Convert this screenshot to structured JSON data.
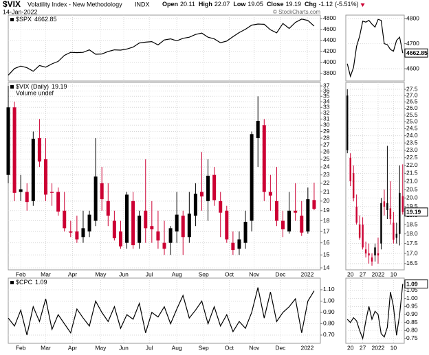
{
  "header": {
    "symbol": "$VIX",
    "name": "Volatility Index - New Methodology",
    "exchange": "INDX",
    "date": "14-Jan-2022",
    "quote": [
      {
        "label": "Open",
        "value": 20.11
      },
      {
        "label": "High",
        "value": 22.07
      },
      {
        "label": "Low",
        "value": 19.05
      },
      {
        "label": "Close",
        "value": 19.19
      }
    ],
    "chg_label": "Chg",
    "chg": -1.12,
    "chg_pct": "(-5.51%)",
    "source": "© StockCharts.com"
  },
  "chart_data": [
    {
      "type": "line",
      "series": [
        {
          "name": "$SPX",
          "color": "#000000",
          "values": [
            3770,
            3890,
            3935,
            3905,
            3840,
            3945,
            3915,
            3975,
            4020,
            4130,
            4185,
            4180,
            4185,
            4230,
            4150,
            4155,
            4200,
            4230,
            4225,
            4245,
            4280,
            4355,
            4370,
            4380,
            4320,
            4410,
            4430,
            4395,
            4440,
            4460,
            4510,
            4535,
            4460,
            4430,
            4360,
            4390,
            4470,
            4545,
            4605,
            4680,
            4700,
            4695,
            4595,
            4540,
            4710,
            4620,
            4730,
            4790,
            4765,
            4662.85
          ]
        }
      ],
      "xlim": [
        0,
        50
      ],
      "ylim": [
        3662,
        4862
      ],
      "yticks": [
        3800,
        4000,
        4200,
        4400,
        4600,
        4800
      ],
      "grid": true
    },
    {
      "type": "line",
      "series": [
        {
          "color": "#000000",
          "values": [
            4620,
            4570,
            4605,
            4690,
            4730,
            4790,
            4786,
            4793,
            4778,
            4766,
            4797,
            4793,
            4700,
            4696,
            4677,
            4670,
            4713,
            4726,
            4662.85
          ]
        }
      ],
      "xlim": [
        -0.5,
        18.5
      ],
      "ylim": [
        4551,
        4814
      ],
      "yticks": [
        4600,
        4700,
        4800
      ],
      "grid": true
    },
    {
      "type": "candlestick",
      "series": [
        {
          "name": "$VIX (Daily)",
          "open": [
            23,
            33,
            21,
            21,
            20,
            28,
            25,
            21,
            21,
            19,
            17,
            17,
            16.5,
            17,
            18,
            22,
            20,
            18,
            17,
            16,
            20,
            16,
            19,
            17.5,
            17,
            16,
            16,
            17,
            18.5,
            16.5,
            18.5,
            21,
            20,
            23,
            20,
            19,
            16,
            15.5,
            16,
            18,
            28,
            30,
            21,
            20,
            18,
            17,
            19,
            18.5,
            17,
            20.11
          ],
          "high": [
            37,
            34,
            23,
            22,
            29,
            31,
            28,
            22,
            21.5,
            21,
            18,
            18.5,
            19,
            19,
            28,
            24,
            22,
            19,
            18,
            21,
            21,
            19,
            25,
            20,
            19,
            18,
            17.5,
            21,
            19,
            21,
            22,
            26,
            25,
            24,
            21,
            19.5,
            17,
            17,
            19,
            29,
            35,
            31,
            23,
            24,
            19,
            21,
            22,
            20,
            21.5,
            22.07
          ],
          "low": [
            22,
            20,
            20,
            19,
            19.5,
            24,
            20,
            19.5,
            18.5,
            17,
            16.5,
            16,
            16,
            16.5,
            17.5,
            19,
            17.5,
            16.2,
            15.5,
            15.5,
            15.5,
            15.5,
            16,
            16,
            15.5,
            15,
            15,
            16,
            15,
            16,
            17.5,
            19,
            18,
            19.5,
            16.5,
            16,
            15,
            15,
            15.5,
            17,
            24,
            20,
            19,
            17.5,
            16.5,
            16.8,
            18,
            16.6,
            16.8,
            19.05
          ],
          "close": [
            33,
            20.9,
            21.3,
            19.9,
            27.9,
            24.7,
            20.7,
            20.9,
            18.9,
            17.3,
            16.9,
            16.3,
            17.3,
            18.6,
            22.8,
            20.2,
            18.5,
            16.4,
            15.7,
            20.7,
            15.8,
            18.5,
            17.3,
            17.2,
            16.2,
            15.5,
            17.3,
            18.6,
            16.5,
            18.7,
            20.8,
            20.5,
            22.9,
            20.1,
            18.8,
            16.3,
            15.4,
            16.3,
            17.9,
            28.6,
            30.7,
            21,
            20.6,
            18,
            17.2,
            19,
            18.8,
            16.9,
            20.2,
            19.19
          ]
        }
      ],
      "up_color": "#000000",
      "down_color": "#cc0033",
      "annotation": "Volume undef",
      "log_scale": true,
      "xlim": [
        0,
        50
      ],
      "xticks": [
        {
          "value": 2,
          "label": "Feb"
        },
        {
          "value": 6,
          "label": "Mar"
        },
        {
          "value": 10.3,
          "label": "Apr"
        },
        {
          "value": 14.8,
          "label": "May"
        },
        {
          "value": 18.5,
          "label": "Jun"
        },
        {
          "value": 22.6,
          "label": "Jul"
        },
        {
          "value": 27,
          "label": "Aug"
        },
        {
          "value": 31.3,
          "label": "Sep"
        },
        {
          "value": 35.4,
          "label": "Oct"
        },
        {
          "value": 39.4,
          "label": "Nov"
        },
        {
          "value": 43.6,
          "label": "Dec"
        },
        {
          "value": 47.9,
          "label": "2022"
        }
      ],
      "ylim": [
        13.85,
        37.7
      ],
      "yticks": [
        14,
        15,
        16,
        17,
        18,
        19,
        20,
        21,
        22,
        23,
        24,
        25,
        26,
        27,
        28,
        29,
        30,
        31,
        32,
        33,
        34,
        35,
        36,
        37
      ],
      "grid": true
    },
    {
      "type": "candlestick",
      "series": [
        {
          "open": [
            23,
            22.5,
            21.5,
            19.5,
            18.5,
            18.5,
            17.2,
            17,
            16.8,
            16.9,
            17,
            17.5,
            19.8,
            19.3,
            19.4,
            18.6,
            17.8,
            18,
            20.11
          ],
          "high": [
            27.5,
            22.8,
            22,
            20.2,
            19,
            18.9,
            17.6,
            17.5,
            17,
            17.5,
            17.8,
            20,
            20.5,
            23.3,
            21,
            19.2,
            18.6,
            22,
            22.07
          ],
          "low": [
            22.8,
            20.7,
            19.8,
            18.5,
            17.7,
            17.2,
            16.8,
            16.5,
            16.4,
            16.6,
            16.5,
            17.2,
            19,
            18.8,
            18.5,
            17.5,
            17.5,
            17.4,
            19.05
          ],
          "close": [
            27,
            21,
            20,
            18.6,
            17.8,
            17.3,
            17,
            16.9,
            16.6,
            17.3,
            16.9,
            19.7,
            19.5,
            19.7,
            18.8,
            17.7,
            18,
            20.3,
            19.19
          ]
        }
      ],
      "up_color": "#000000",
      "down_color": "#cc0033",
      "log_scale": true,
      "xlim": [
        -0.5,
        18.5
      ],
      "xticks": [
        {
          "value": 1,
          "label": "20"
        },
        {
          "value": 5,
          "label": "27"
        },
        {
          "value": 10,
          "label": "2022"
        },
        {
          "value": 15,
          "label": "10"
        }
      ],
      "ylim": [
        16.2,
        28.06
      ],
      "yticks": [
        16.5,
        {
          "value": 17,
          "label": "17.0"
        },
        17.5,
        {
          "value": 18,
          "label": "18.0"
        },
        18.5,
        {
          "value": 19,
          "label": "19.0"
        },
        19.5,
        {
          "value": 20,
          "label": "20.0"
        },
        20.5,
        {
          "value": 21,
          "label": "21.0"
        },
        21.5,
        {
          "value": 22,
          "label": "22.0"
        },
        22.5,
        {
          "value": 23,
          "label": "23.0"
        },
        23.5,
        {
          "value": 24,
          "label": "24.0"
        },
        24.5,
        {
          "value": 25,
          "label": "25.0"
        },
        25.5,
        {
          "value": 26,
          "label": "26.0"
        },
        26.5,
        {
          "value": 27,
          "label": "27.0"
        },
        27.5
      ],
      "grid": true
    },
    {
      "type": "line",
      "series": [
        {
          "name": "$CPC",
          "color": "#000000",
          "values": [
            0.85,
            0.78,
            0.92,
            0.7,
            0.95,
            0.82,
            1.02,
            0.75,
            0.88,
            0.8,
            0.72,
            0.93,
            0.85,
            0.78,
            1.0,
            0.9,
            0.82,
            0.95,
            0.76,
            0.88,
            0.84,
            0.98,
            0.72,
            0.9,
            0.86,
            0.95,
            0.8,
            0.93,
            1.05,
            0.85,
            0.92,
            1.0,
            0.8,
            0.95,
            0.78,
            0.88,
            0.73,
            0.82,
            0.76,
            0.9,
            1.12,
            0.85,
            1.08,
            0.82,
            0.9,
            0.95,
            1.02,
            0.72,
            1.0,
            1.09
          ]
        }
      ],
      "xlim": [
        0,
        50
      ],
      "xticks": [
        {
          "value": 2,
          "label": "Feb"
        },
        {
          "value": 6,
          "label": "Mar"
        },
        {
          "value": 10.3,
          "label": "Apr"
        },
        {
          "value": 14.8,
          "label": "May"
        },
        {
          "value": 18.5,
          "label": "Jun"
        },
        {
          "value": 22.6,
          "label": "Jul"
        },
        {
          "value": 27,
          "label": "Aug"
        },
        {
          "value": 31.3,
          "label": "Sep"
        },
        {
          "value": 35.4,
          "label": "Oct"
        },
        {
          "value": 39.4,
          "label": "Nov"
        },
        {
          "value": 43.6,
          "label": "Dec"
        },
        {
          "value": 47.9,
          "label": "2022"
        }
      ],
      "ylim": [
        0.627,
        1.203
      ],
      "yticks": [
        {
          "value": 0.7,
          "label": "0.70"
        },
        {
          "value": 0.8,
          "label": "0.80"
        },
        {
          "value": 0.9,
          "label": "0.90"
        },
        {
          "value": 1.0,
          "label": "1.00"
        },
        {
          "value": 1.1,
          "label": "1.10"
        }
      ],
      "grid": true
    },
    {
      "type": "line",
      "series": [
        {
          "color": "#000000",
          "values": [
            0.87,
            0.85,
            0.88,
            0.86,
            0.8,
            0.75,
            0.86,
            0.95,
            0.87,
            0.92,
            0.9,
            0.78,
            0.76,
            0.82,
            1.04,
            0.95,
            0.77,
            0.9,
            1.09
          ]
        }
      ],
      "xlim": [
        -0.5,
        18.5
      ],
      "xticks": [
        {
          "value": 1,
          "label": "20"
        },
        {
          "value": 5,
          "label": "27"
        },
        {
          "value": 10,
          "label": "2022"
        },
        {
          "value": 15,
          "label": "10"
        }
      ],
      "ylim": [
        0.72,
        1.127
      ],
      "yticks": [
        0.75,
        {
          "value": 0.8,
          "label": "0.80"
        },
        0.85,
        {
          "value": 0.9,
          "label": "0.90"
        },
        0.95,
        {
          "value": 1.0,
          "label": "1.00"
        },
        1.05
      ],
      "grid": true
    }
  ]
}
